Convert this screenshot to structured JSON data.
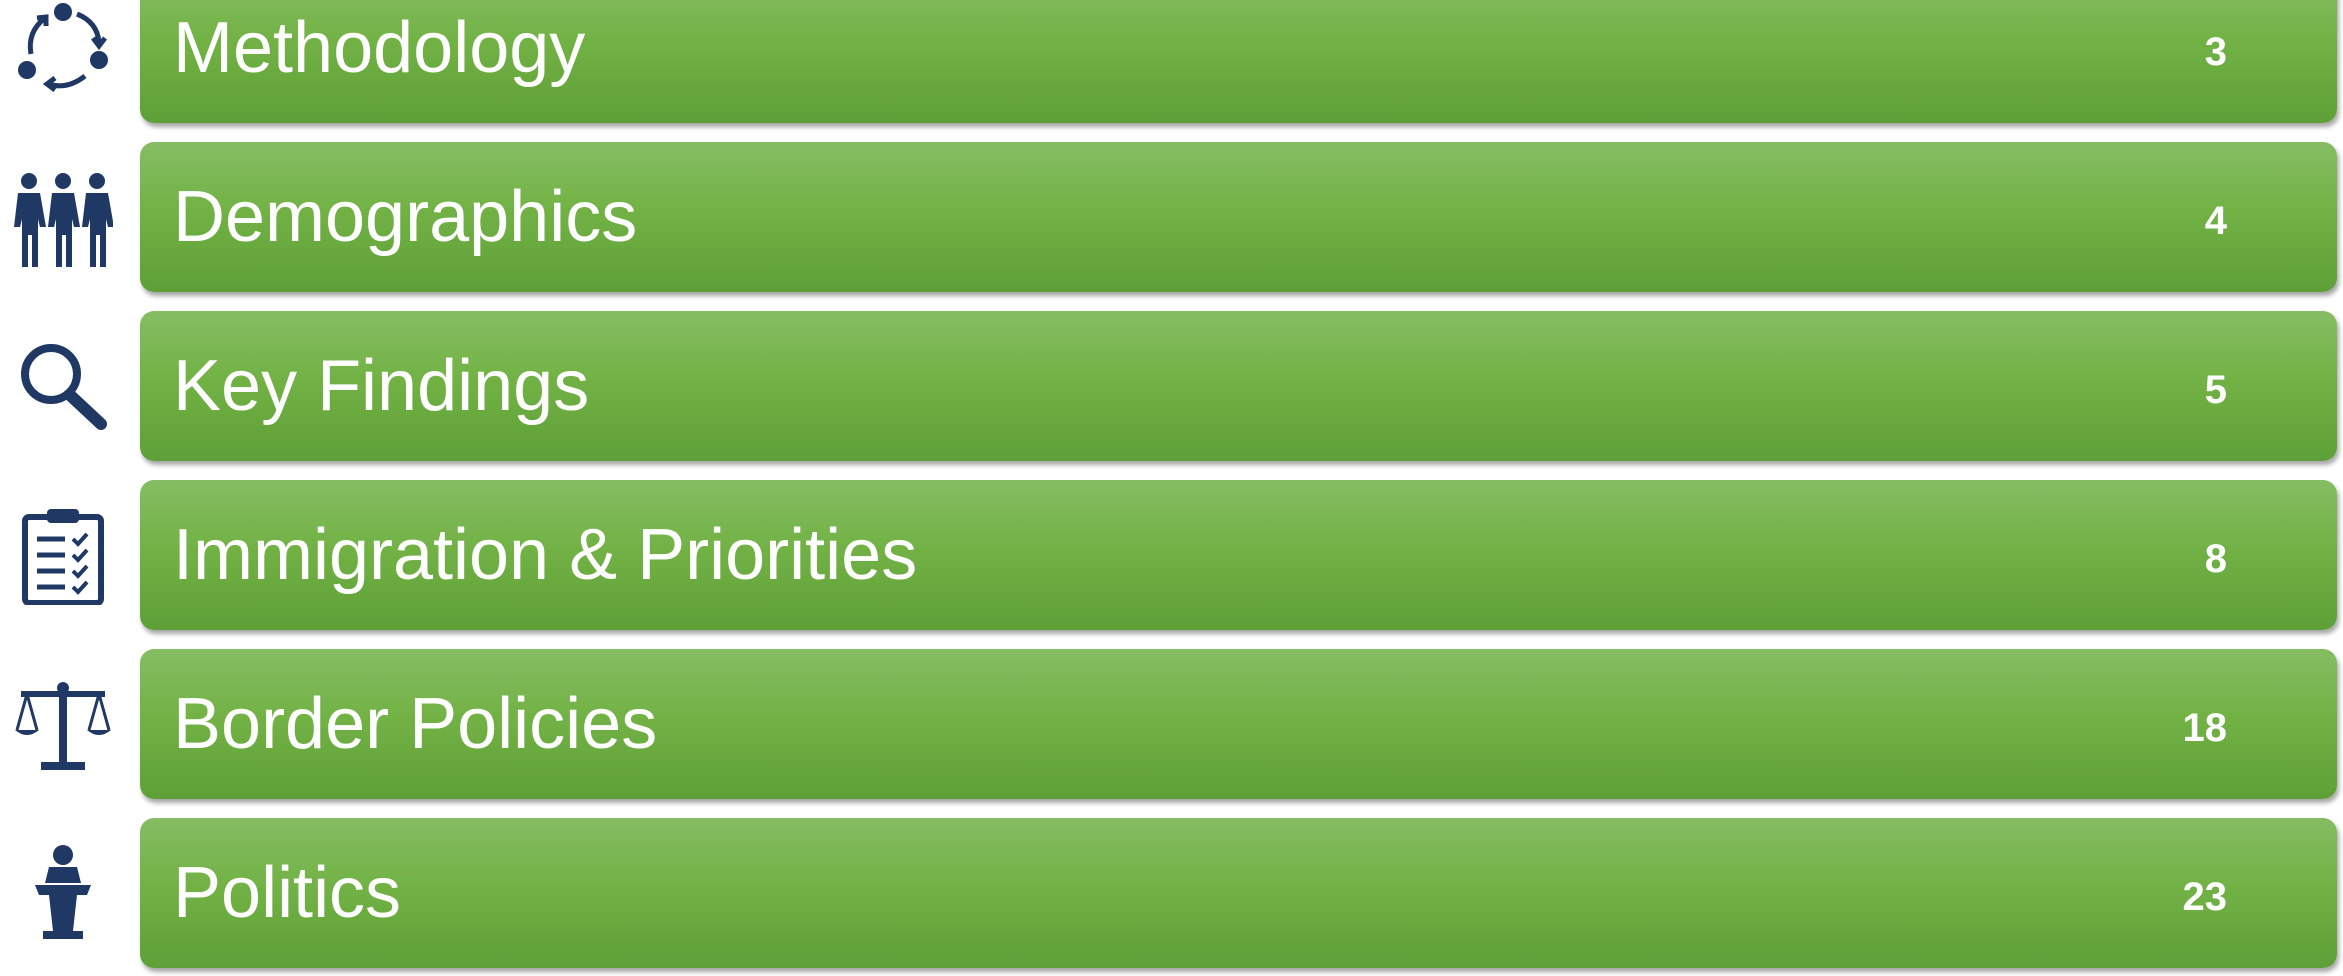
{
  "items": [
    {
      "title": "Methodology",
      "page": 3
    },
    {
      "title": "Demographics",
      "page": 4
    },
    {
      "title": "Key Findings",
      "page": 5
    },
    {
      "title": "Immigration & Priorities",
      "page": 8
    },
    {
      "title": "Border Policies",
      "page": 18
    },
    {
      "title": "Politics",
      "page": 23
    }
  ]
}
